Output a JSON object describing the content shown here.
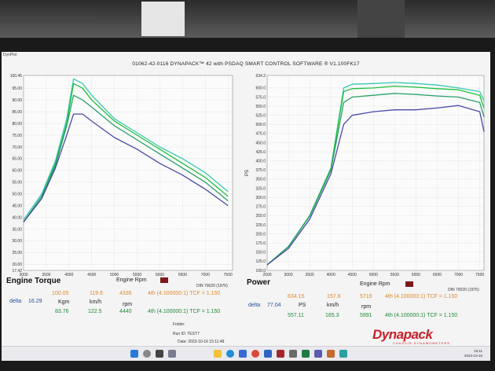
{
  "window": {
    "app_title": "DynPlot",
    "header": "01062-42-0116 DYNAPACK™ 42 with PSDAQ SMART CONTROL SOFTWARE ® V1.100FK17"
  },
  "torque_panel": {
    "title": "Engine Torque",
    "xlabel": "Engine Rpm",
    "din": "DIN 70020 (1976)",
    "delta_label": "delta",
    "delta_value": "16.29",
    "units": [
      "Kgm",
      "km/h",
      "rpm"
    ],
    "row1": {
      "torque": "100.05",
      "speed": "119.6",
      "rpm": "4336",
      "gear": "4th (4.100000:1) TCF = 1.150"
    },
    "row2": {
      "torque": "83.76",
      "speed": "122.5",
      "rpm": "4440",
      "gear": "4th (4.100000:1) TCF = 1.150"
    }
  },
  "power_panel": {
    "title": "Power",
    "xlabel": "Engine Rpm",
    "din": "DIN 70020 (1976)",
    "delta_label": "delta",
    "delta_value": "77.04",
    "units": [
      "PS",
      "km/h",
      "rpm"
    ],
    "row1": {
      "power": "634.15",
      "speed": "157.8",
      "rpm": "5719",
      "gear": "4th (4.100000:1) TCF = 1.150"
    },
    "row2": {
      "power": "557.11",
      "speed": "165.3",
      "rpm": "5991",
      "gear": "4th (4.100000:1) TCF = 1.150"
    }
  },
  "footer": {
    "folder": "Folder:",
    "run": "Run ID: TEST7",
    "date": "Date: 2023-10-16 15:11:48",
    "brand": "Dynapack",
    "brand_sub": "CHASSIS DYNAMOMETERS",
    "clock_time": "15:11",
    "clock_date": "2023-10-16"
  },
  "colors": {
    "green": "#1fbf3c",
    "teal": "#37c8b0",
    "blue": "#4a4aa6",
    "orange": "#e08a2c",
    "brand_red": "#c8202a"
  },
  "chart_data": [
    {
      "type": "line",
      "title": "Engine Torque",
      "xlabel": "Engine Rpm",
      "ylabel": "",
      "xlim": [
        3000,
        7600
      ],
      "ylim": [
        17.42,
        100.45
      ],
      "x_ticks": [
        3000,
        3500,
        4000,
        4500,
        5000,
        5500,
        6000,
        6500,
        7000,
        7500
      ],
      "y_ticks": [
        "100.45",
        "95.00",
        "90.00",
        "85.00",
        "80.00",
        "75.00",
        "70.00",
        "65.00",
        "60.00",
        "55.00",
        "50.00",
        "45.00",
        "40.00",
        "35.00",
        "30.00",
        "25.00",
        "20.00",
        "17.42"
      ],
      "series": [
        {
          "color": "#37c8b0",
          "x": [
            3000,
            3400,
            3700,
            3950,
            4100,
            4300,
            4500,
            5000,
            5500,
            6000,
            6500,
            7000,
            7500
          ],
          "y": [
            39,
            50,
            64,
            82,
            99,
            97,
            92,
            82,
            76,
            70,
            65,
            59,
            51
          ]
        },
        {
          "color": "#1fbf3c",
          "x": [
            3000,
            3400,
            3700,
            3950,
            4100,
            4300,
            4500,
            5000,
            5500,
            6000,
            6500,
            7000,
            7500
          ],
          "y": [
            38,
            49,
            63,
            80,
            97,
            95,
            90,
            81,
            75,
            69,
            63,
            57,
            49
          ]
        },
        {
          "color": "#2aa06a",
          "x": [
            3000,
            3400,
            3700,
            3950,
            4100,
            4300,
            4500,
            5000,
            5500,
            6000,
            6500,
            7000,
            7500
          ],
          "y": [
            38,
            49,
            62,
            79,
            92,
            90,
            87,
            79,
            73,
            67,
            61,
            55,
            47
          ]
        },
        {
          "color": "#4a4aa6",
          "x": [
            3000,
            3400,
            3700,
            3950,
            4100,
            4300,
            4500,
            5000,
            5500,
            6000,
            6500,
            7000,
            7500
          ],
          "y": [
            38,
            48,
            61,
            75,
            84,
            84,
            81,
            74,
            69,
            63,
            58,
            52,
            45
          ]
        }
      ]
    },
    {
      "type": "line",
      "title": "Power",
      "xlabel": "Engine Rpm",
      "ylabel": "PS",
      "xlim": [
        2500,
        7600
      ],
      "ylim": [
        100,
        634.2
      ],
      "x_ticks": [
        2500,
        3000,
        3500,
        4000,
        4500,
        5000,
        5500,
        6000,
        6500,
        7000,
        7500
      ],
      "y_ticks": [
        "634.2",
        "600.0",
        "575.0",
        "550.0",
        "525.0",
        "500.0",
        "475.0",
        "450.0",
        "425.0",
        "400.0",
        "375.0",
        "350.0",
        "325.0",
        "300.0",
        "275.0",
        "250.0",
        "225.0",
        "200.0",
        "175.0",
        "150.0",
        "125.0",
        "100.0"
      ],
      "series": [
        {
          "color": "#37c8b0",
          "x": [
            2500,
            3000,
            3500,
            4000,
            4300,
            4500,
            5000,
            5500,
            6000,
            6500,
            7000,
            7500,
            7600
          ],
          "y": [
            115,
            165,
            250,
            380,
            600,
            610,
            612,
            615,
            612,
            608,
            600,
            590,
            565
          ]
        },
        {
          "color": "#1fbf3c",
          "x": [
            2500,
            3000,
            3500,
            4000,
            4300,
            4500,
            5000,
            5500,
            6000,
            6500,
            7000,
            7500,
            7600
          ],
          "y": [
            115,
            165,
            250,
            380,
            590,
            598,
            600,
            605,
            602,
            598,
            595,
            580,
            545
          ]
        },
        {
          "color": "#2aa06a",
          "x": [
            2500,
            3000,
            3500,
            4000,
            4300,
            4500,
            5000,
            5500,
            6000,
            6500,
            7000,
            7500,
            7600
          ],
          "y": [
            115,
            165,
            248,
            375,
            560,
            575,
            580,
            585,
            582,
            578,
            575,
            560,
            520
          ]
        },
        {
          "color": "#4a4aa6",
          "x": [
            2500,
            3000,
            3500,
            4000,
            4300,
            4500,
            5000,
            5500,
            6000,
            6500,
            7000,
            7500,
            7600
          ],
          "y": [
            115,
            160,
            240,
            365,
            500,
            525,
            535,
            540,
            540,
            545,
            552,
            535,
            480
          ]
        }
      ]
    }
  ]
}
